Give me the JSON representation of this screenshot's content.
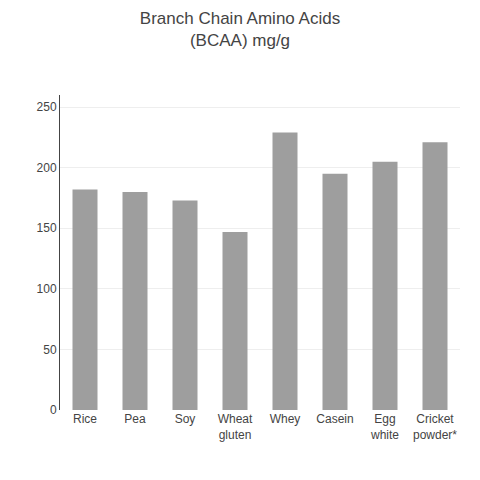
{
  "chart_data": {
    "type": "bar",
    "title": "Branch Chain Amino Acids\n(BCAA) mg/g",
    "categories": [
      "Rice",
      "Pea",
      "Soy",
      "Wheat\ngluten",
      "Whey",
      "Casein",
      "Egg\nwhite",
      "Cricket\npowder*"
    ],
    "values": [
      182,
      180,
      173,
      147,
      229,
      195,
      205,
      221
    ],
    "color": "#9e9e9e",
    "ylim": [
      0,
      260
    ],
    "yticks": [
      0,
      50,
      100,
      150,
      200,
      250
    ],
    "grid": true
  }
}
